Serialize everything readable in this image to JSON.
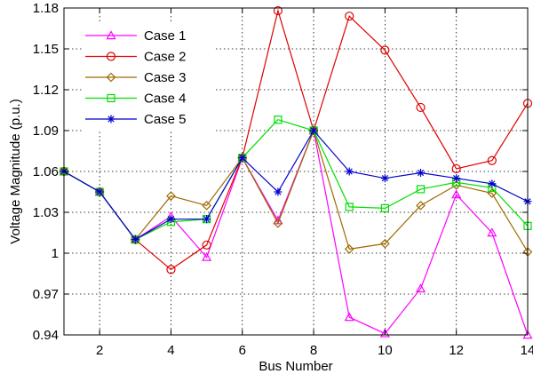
{
  "chart_data": {
    "type": "line",
    "title": "",
    "xlabel": "Bus Number",
    "ylabel": "Voltage Magnitude (p.u.)",
    "xlim": [
      1,
      14
    ],
    "ylim": [
      0.94,
      1.18
    ],
    "xticks": [
      2,
      4,
      6,
      8,
      10,
      12,
      14
    ],
    "xtick_labels": [
      "2",
      "4",
      "6",
      "8",
      "10",
      "12",
      "14"
    ],
    "yticks": [
      0.94,
      0.97,
      1.0,
      1.03,
      1.06,
      1.09,
      1.12,
      1.15,
      1.18
    ],
    "ytick_labels": [
      "0.94",
      "0.97",
      "1",
      "1.03",
      "1.06",
      "1.09",
      "1.12",
      "1.15",
      "1.18"
    ],
    "grid": true,
    "grid_style": "dotted",
    "legend_position": "top-left",
    "x": [
      1,
      2,
      3,
      4,
      5,
      6,
      7,
      8,
      9,
      10,
      11,
      12,
      13,
      14
    ],
    "series": [
      {
        "name": "Case 1",
        "color": "#ff00ff",
        "marker": "triangle",
        "values": [
          1.06,
          1.045,
          1.01,
          1.027,
          0.997,
          1.07,
          1.024,
          1.09,
          0.953,
          0.941,
          0.974,
          1.043,
          1.015,
          0.94
        ]
      },
      {
        "name": "Case 2",
        "color": "#e00000",
        "marker": "circle",
        "values": [
          1.06,
          1.045,
          1.01,
          0.988,
          1.006,
          1.07,
          1.178,
          1.09,
          1.174,
          1.149,
          1.107,
          1.062,
          1.068,
          1.11
        ]
      },
      {
        "name": "Case 3",
        "color": "#a06a00",
        "marker": "diamond",
        "values": [
          1.06,
          1.045,
          1.01,
          1.042,
          1.035,
          1.07,
          1.022,
          1.09,
          1.003,
          1.007,
          1.035,
          1.05,
          1.044,
          1.001
        ]
      },
      {
        "name": "Case 4",
        "color": "#00e000",
        "marker": "square",
        "values": [
          1.06,
          1.045,
          1.01,
          1.023,
          1.025,
          1.07,
          1.098,
          1.09,
          1.034,
          1.033,
          1.047,
          1.052,
          1.048,
          1.02
        ]
      },
      {
        "name": "Case 5",
        "color": "#0000cc",
        "marker": "star",
        "values": [
          1.06,
          1.045,
          1.01,
          1.025,
          1.025,
          1.07,
          1.045,
          1.09,
          1.06,
          1.055,
          1.059,
          1.055,
          1.051,
          1.038
        ]
      }
    ]
  }
}
